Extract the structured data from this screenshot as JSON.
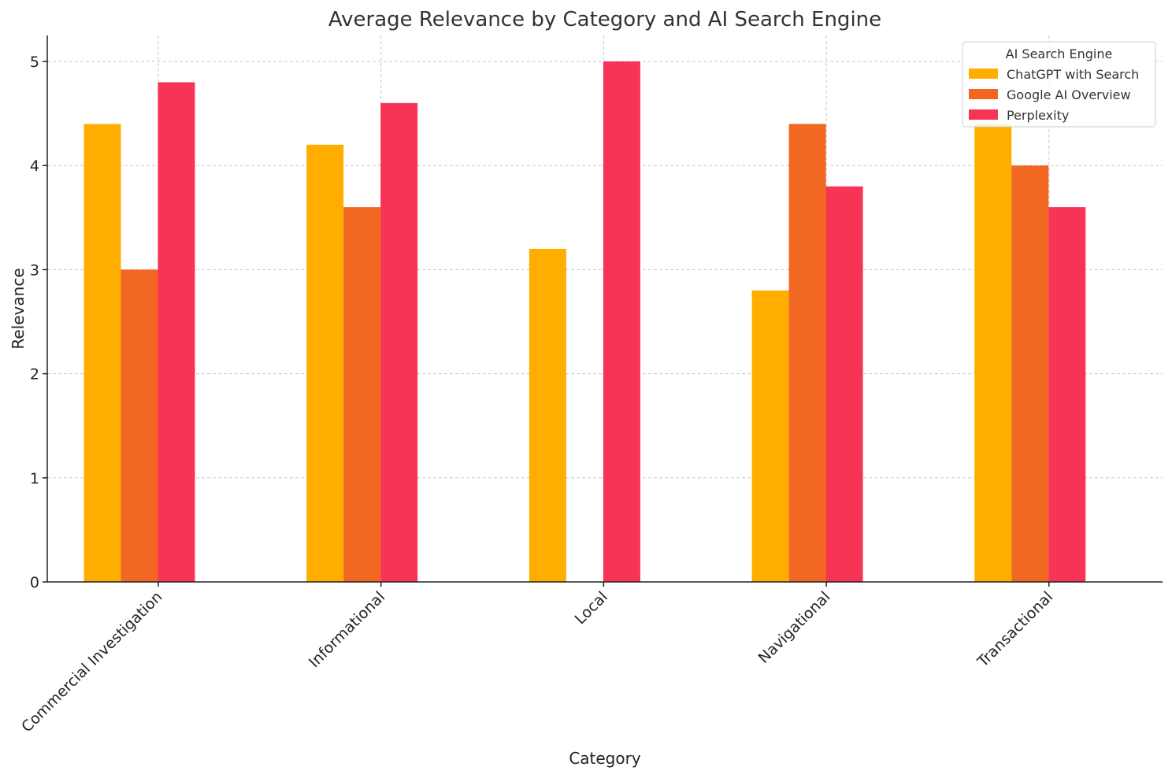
{
  "chart_data": {
    "type": "bar",
    "title": "Average Relevance by Category and AI Search Engine",
    "xlabel": "Category",
    "ylabel": "Relevance",
    "categories": [
      "Commercial Investigation",
      "Informational",
      "Local",
      "Navigational",
      "Transactional"
    ],
    "series": [
      {
        "name": "ChatGPT with Search",
        "values": [
          4.4,
          4.2,
          3.2,
          2.8,
          4.4
        ],
        "color": "#FFAE00"
      },
      {
        "name": "Google AI Overview",
        "values": [
          3.0,
          3.6,
          0,
          4.4,
          4.0
        ],
        "color": "#F26722"
      },
      {
        "name": "Perplexity",
        "values": [
          4.8,
          4.6,
          5.0,
          3.8,
          3.6
        ],
        "color": "#F73356"
      }
    ],
    "ylim": [
      0,
      5.25
    ],
    "yticks": [
      0,
      1,
      2,
      3,
      4,
      5
    ],
    "grid": true,
    "legend": {
      "title": "AI Search Engine",
      "position": "top-right"
    }
  }
}
